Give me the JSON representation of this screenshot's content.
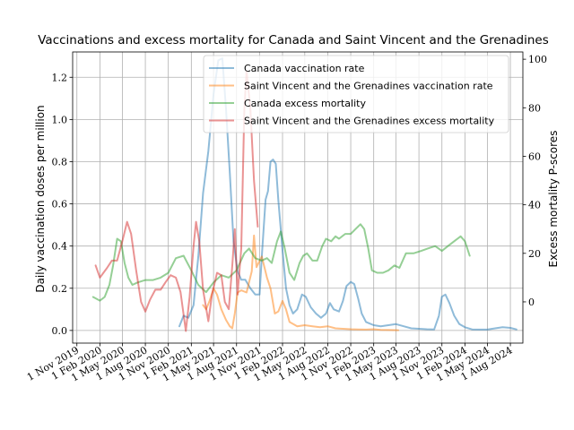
{
  "chart_data": {
    "type": "line",
    "title": "Vaccinations and excess mortality for Canada and Saint Vincent and the Grenadines",
    "ylabel_left": "Daily vaccination doses per million",
    "ylabel_right": "Excess mortality P-scores",
    "ylim_left": [
      -0.06,
      1.32
    ],
    "ylim_right": [
      -17.0,
      103.0
    ],
    "xlim": [
      "2019-10-15",
      "2024-09-20"
    ],
    "yticks_left": [
      "0.0",
      "0.2",
      "0.4",
      "0.6",
      "0.8",
      "1.0",
      "1.2"
    ],
    "yticks_right": [
      "0",
      "20",
      "40",
      "60",
      "80",
      "100"
    ],
    "xticks": [
      {
        "date": "2019-11-01",
        "label": "1 Nov 2019"
      },
      {
        "date": "2020-02-01",
        "label": "1 Feb 2020"
      },
      {
        "date": "2020-05-01",
        "label": "1 May 2020"
      },
      {
        "date": "2020-08-01",
        "label": "1 Aug 2020"
      },
      {
        "date": "2020-11-01",
        "label": "1 Nov 2020"
      },
      {
        "date": "2021-02-01",
        "label": "1 Feb 2021"
      },
      {
        "date": "2021-05-01",
        "label": "1 May 2021"
      },
      {
        "date": "2021-08-01",
        "label": "1 Aug 2021"
      },
      {
        "date": "2021-11-01",
        "label": "1 Nov 2021"
      },
      {
        "date": "2022-02-01",
        "label": "1 Feb 2022"
      },
      {
        "date": "2022-05-01",
        "label": "1 May 2022"
      },
      {
        "date": "2022-08-01",
        "label": "1 Aug 2022"
      },
      {
        "date": "2022-11-01",
        "label": "1 Nov 2022"
      },
      {
        "date": "2023-02-01",
        "label": "1 Feb 2023"
      },
      {
        "date": "2023-05-01",
        "label": "1 May 2023"
      },
      {
        "date": "2023-08-01",
        "label": "1 Aug 2023"
      },
      {
        "date": "2023-11-01",
        "label": "1 Nov 2023"
      },
      {
        "date": "2024-02-01",
        "label": "1 Feb 2024"
      },
      {
        "date": "2024-05-01",
        "label": "1 May 2024"
      },
      {
        "date": "2024-08-01",
        "label": "1 Aug 2024"
      }
    ],
    "grid": true,
    "legend_position": "top-right",
    "series": [
      {
        "name": "Canada vaccination rate",
        "axis": "left",
        "color": "#1f77b4",
        "points": [
          [
            "2020-12-15",
            0.02
          ],
          [
            "2021-01-01",
            0.07
          ],
          [
            "2021-01-20",
            0.06
          ],
          [
            "2021-02-10",
            0.12
          ],
          [
            "2021-03-01",
            0.35
          ],
          [
            "2021-03-20",
            0.65
          ],
          [
            "2021-04-10",
            0.85
          ],
          [
            "2021-05-01",
            1.12
          ],
          [
            "2021-05-20",
            1.28
          ],
          [
            "2021-06-05",
            1.29
          ],
          [
            "2021-06-20",
            1.05
          ],
          [
            "2021-07-05",
            0.75
          ],
          [
            "2021-07-20",
            0.42
          ],
          [
            "2021-08-05",
            0.28
          ],
          [
            "2021-08-20",
            0.24
          ],
          [
            "2021-09-05",
            0.24
          ],
          [
            "2021-09-25",
            0.2
          ],
          [
            "2021-10-15",
            0.17
          ],
          [
            "2021-11-01",
            0.17
          ],
          [
            "2021-11-10",
            0.35
          ],
          [
            "2021-11-25",
            0.62
          ],
          [
            "2021-12-05",
            0.66
          ],
          [
            "2021-12-15",
            0.8
          ],
          [
            "2021-12-25",
            0.81
          ],
          [
            "2022-01-05",
            0.79
          ],
          [
            "2022-01-15",
            0.62
          ],
          [
            "2022-02-01",
            0.38
          ],
          [
            "2022-02-15",
            0.2
          ],
          [
            "2022-03-01",
            0.12
          ],
          [
            "2022-03-15",
            0.08
          ],
          [
            "2022-04-01",
            0.1
          ],
          [
            "2022-04-20",
            0.17
          ],
          [
            "2022-05-05",
            0.16
          ],
          [
            "2022-05-25",
            0.11
          ],
          [
            "2022-06-15",
            0.08
          ],
          [
            "2022-07-05",
            0.06
          ],
          [
            "2022-07-25",
            0.08
          ],
          [
            "2022-08-10",
            0.13
          ],
          [
            "2022-08-25",
            0.1
          ],
          [
            "2022-09-15",
            0.09
          ],
          [
            "2022-10-01",
            0.14
          ],
          [
            "2022-10-15",
            0.21
          ],
          [
            "2022-11-01",
            0.23
          ],
          [
            "2022-11-15",
            0.22
          ],
          [
            "2022-12-01",
            0.15
          ],
          [
            "2022-12-15",
            0.08
          ],
          [
            "2023-01-01",
            0.04
          ],
          [
            "2023-02-01",
            0.025
          ],
          [
            "2023-03-01",
            0.02
          ],
          [
            "2023-04-01",
            0.025
          ],
          [
            "2023-05-01",
            0.03
          ],
          [
            "2023-06-01",
            0.02
          ],
          [
            "2023-07-01",
            0.01
          ],
          [
            "2023-08-01",
            0.008
          ],
          [
            "2023-09-01",
            0.006
          ],
          [
            "2023-10-01",
            0.005
          ],
          [
            "2023-10-20",
            0.07
          ],
          [
            "2023-11-01",
            0.16
          ],
          [
            "2023-11-15",
            0.17
          ],
          [
            "2023-12-01",
            0.13
          ],
          [
            "2023-12-20",
            0.07
          ],
          [
            "2024-01-10",
            0.03
          ],
          [
            "2024-02-01",
            0.015
          ],
          [
            "2024-03-01",
            0.005
          ],
          [
            "2024-04-01",
            0.004
          ],
          [
            "2024-05-01",
            0.004
          ],
          [
            "2024-06-01",
            0.01
          ],
          [
            "2024-07-01",
            0.015
          ],
          [
            "2024-08-01",
            0.012
          ],
          [
            "2024-08-25",
            0.005
          ]
        ]
      },
      {
        "name": "Saint Vincent and the Grenadines vaccination rate",
        "axis": "left",
        "color": "#ff7f0e",
        "points": [
          [
            "2021-03-20",
            0.12
          ],
          [
            "2021-04-01",
            0.1
          ],
          [
            "2021-04-15",
            0.14
          ],
          [
            "2021-05-01",
            0.2
          ],
          [
            "2021-05-15",
            0.17
          ],
          [
            "2021-06-01",
            0.1
          ],
          [
            "2021-06-20",
            0.05
          ],
          [
            "2021-07-05",
            0.02
          ],
          [
            "2021-07-15",
            0.01
          ],
          [
            "2021-07-25",
            0.08
          ],
          [
            "2021-08-05",
            0.18
          ],
          [
            "2021-08-20",
            0.19
          ],
          [
            "2021-09-10",
            0.18
          ],
          [
            "2021-10-01",
            0.28
          ],
          [
            "2021-10-10",
            0.45
          ],
          [
            "2021-10-20",
            0.3
          ],
          [
            "2021-11-10",
            0.35
          ],
          [
            "2021-12-01",
            0.25
          ],
          [
            "2021-12-15",
            0.2
          ],
          [
            "2022-01-01",
            0.08
          ],
          [
            "2022-01-15",
            0.09
          ],
          [
            "2022-02-01",
            0.14
          ],
          [
            "2022-02-15",
            0.1
          ],
          [
            "2022-03-01",
            0.04
          ],
          [
            "2022-04-01",
            0.02
          ],
          [
            "2022-05-01",
            0.025
          ],
          [
            "2022-06-01",
            0.02
          ],
          [
            "2022-07-01",
            0.015
          ],
          [
            "2022-08-01",
            0.02
          ],
          [
            "2022-09-01",
            0.01
          ],
          [
            "2022-10-01",
            0.008
          ],
          [
            "2022-11-01",
            0.006
          ],
          [
            "2022-12-01",
            0.005
          ],
          [
            "2023-01-01",
            0.004
          ],
          [
            "2023-02-01",
            0.006
          ],
          [
            "2023-03-01",
            0.003
          ],
          [
            "2023-04-01",
            0.002
          ],
          [
            "2023-05-10",
            0.001
          ]
        ]
      },
      {
        "name": "Canada excess mortality",
        "axis": "right",
        "color": "#2ca02c",
        "points": [
          [
            "2020-01-05",
            2.0
          ],
          [
            "2020-02-01",
            0.5
          ],
          [
            "2020-02-20",
            2.0
          ],
          [
            "2020-03-10",
            7.0
          ],
          [
            "2020-03-25",
            15.0
          ],
          [
            "2020-04-10",
            26.0
          ],
          [
            "2020-04-25",
            25.0
          ],
          [
            "2020-05-10",
            16.0
          ],
          [
            "2020-05-25",
            10.0
          ],
          [
            "2020-06-10",
            7.0
          ],
          [
            "2020-07-01",
            8.0
          ],
          [
            "2020-08-01",
            9.0
          ],
          [
            "2020-09-01",
            9.0
          ],
          [
            "2020-10-01",
            10.0
          ],
          [
            "2020-11-01",
            12.0
          ],
          [
            "2020-12-01",
            18.0
          ],
          [
            "2021-01-01",
            19.0
          ],
          [
            "2021-02-01",
            13.0
          ],
          [
            "2021-03-01",
            7.0
          ],
          [
            "2021-04-01",
            4.0
          ],
          [
            "2021-05-01",
            8.0
          ],
          [
            "2021-06-01",
            11.0
          ],
          [
            "2021-07-01",
            10.0
          ],
          [
            "2021-08-01",
            13.0
          ],
          [
            "2021-09-01",
            20.0
          ],
          [
            "2021-09-20",
            22.0
          ],
          [
            "2021-10-15",
            18.0
          ],
          [
            "2021-11-10",
            17.0
          ],
          [
            "2021-12-01",
            18.0
          ],
          [
            "2021-12-20",
            16.0
          ],
          [
            "2022-01-10",
            25.0
          ],
          [
            "2022-01-25",
            29.0
          ],
          [
            "2022-02-10",
            22.0
          ],
          [
            "2022-03-01",
            12.0
          ],
          [
            "2022-03-20",
            9.0
          ],
          [
            "2022-04-10",
            16.0
          ],
          [
            "2022-04-25",
            19.0
          ],
          [
            "2022-05-10",
            20.0
          ],
          [
            "2022-06-01",
            17.0
          ],
          [
            "2022-06-20",
            17.0
          ],
          [
            "2022-07-10",
            23.0
          ],
          [
            "2022-07-25",
            26.0
          ],
          [
            "2022-08-15",
            25.0
          ],
          [
            "2022-09-01",
            27.0
          ],
          [
            "2022-09-15",
            26.0
          ],
          [
            "2022-10-10",
            28.0
          ],
          [
            "2022-11-01",
            28.0
          ],
          [
            "2022-11-20",
            30.0
          ],
          [
            "2022-12-10",
            32.0
          ],
          [
            "2022-12-25",
            30.0
          ],
          [
            "2023-01-10",
            22.0
          ],
          [
            "2023-01-25",
            13.0
          ],
          [
            "2023-02-15",
            12.0
          ],
          [
            "2023-03-10",
            12.0
          ],
          [
            "2023-04-01",
            13.0
          ],
          [
            "2023-04-25",
            15.0
          ],
          [
            "2023-05-15",
            14.0
          ],
          [
            "2023-06-10",
            20.0
          ],
          [
            "2023-07-10",
            20.0
          ],
          [
            "2023-08-10",
            21.0
          ],
          [
            "2023-09-05",
            22.0
          ],
          [
            "2023-10-05",
            23.0
          ],
          [
            "2023-11-01",
            21.0
          ],
          [
            "2023-11-25",
            23.0
          ],
          [
            "2023-12-20",
            25.0
          ],
          [
            "2024-01-15",
            27.0
          ],
          [
            "2024-02-01",
            25.0
          ],
          [
            "2024-02-20",
            19.0
          ]
        ]
      },
      {
        "name": "Saint Vincent and the Grenadines excess mortality",
        "axis": "right",
        "color": "#d62728",
        "points": [
          [
            "2020-01-15",
            15.0
          ],
          [
            "2020-02-01",
            10.0
          ],
          [
            "2020-03-01",
            14.0
          ],
          [
            "2020-03-20",
            17.0
          ],
          [
            "2020-04-10",
            17.0
          ],
          [
            "2020-05-01",
            25.0
          ],
          [
            "2020-05-20",
            33.0
          ],
          [
            "2020-06-05",
            28.0
          ],
          [
            "2020-06-25",
            13.0
          ],
          [
            "2020-07-15",
            0.0
          ],
          [
            "2020-08-01",
            -4.0
          ],
          [
            "2020-08-20",
            1.0
          ],
          [
            "2020-09-10",
            5.0
          ],
          [
            "2020-10-01",
            5.0
          ],
          [
            "2020-10-20",
            8.0
          ],
          [
            "2020-11-10",
            11.0
          ],
          [
            "2020-12-01",
            10.0
          ],
          [
            "2020-12-20",
            4.0
          ],
          [
            "2021-01-10",
            -12.0
          ],
          [
            "2021-01-25",
            2.0
          ],
          [
            "2021-02-10",
            23.0
          ],
          [
            "2021-02-20",
            33.0
          ],
          [
            "2021-03-05",
            25.0
          ],
          [
            "2021-03-20",
            5.0
          ],
          [
            "2021-04-10",
            -8.0
          ],
          [
            "2021-04-25",
            3.0
          ],
          [
            "2021-05-15",
            12.0
          ],
          [
            "2021-06-01",
            11.0
          ],
          [
            "2021-06-15",
            0.0
          ],
          [
            "2021-07-01",
            -3.0
          ],
          [
            "2021-07-15",
            15.0
          ],
          [
            "2021-07-25",
            30.0
          ],
          [
            "2021-08-05",
            3.0
          ],
          [
            "2021-08-20",
            22.0
          ],
          [
            "2021-09-01",
            79.0
          ],
          [
            "2021-09-10",
            95.0
          ],
          [
            "2021-09-25",
            80.0
          ],
          [
            "2021-10-10",
            50.0
          ],
          [
            "2021-10-25",
            31.0
          ]
        ]
      }
    ]
  }
}
